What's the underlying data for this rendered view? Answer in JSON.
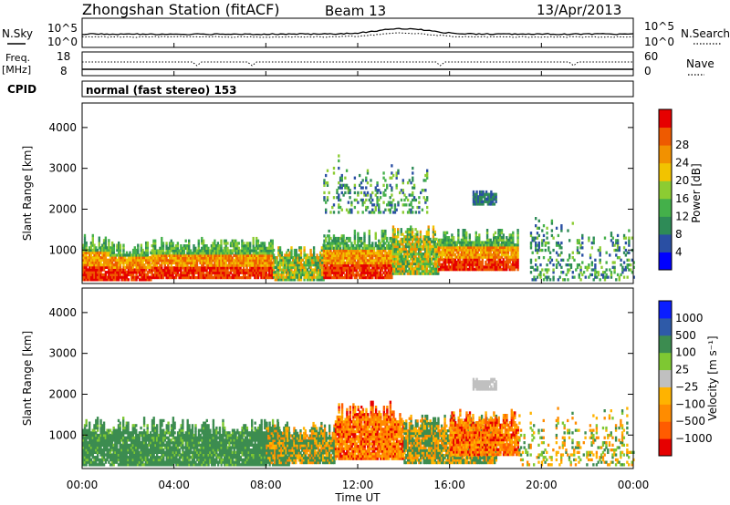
{
  "header": {
    "station": "Zhongshan Station (fitACF)",
    "beam": "Beam 13",
    "date": "13/Apr/2013",
    "mode": "normal (fast stereo) 153"
  },
  "left_labels": {
    "nsky": "N.Sky",
    "freq": "Freq.",
    "freq_unit": "[MHz]",
    "cpid": "CPID"
  },
  "right_labels": {
    "nsearch": "N.Search",
    "nave": "Nave"
  },
  "top_ticks": {
    "noise_left": [
      "10^5",
      "10^0"
    ],
    "noise_right": [
      "10^5",
      "10^0"
    ],
    "freq_left": [
      "18",
      "8"
    ],
    "nave_right": [
      "60",
      "0"
    ]
  },
  "colors": {
    "power": [
      "#0000ff",
      "#2a4fa3",
      "#2e8b57",
      "#44b04a",
      "#8ccc32",
      "#f2c300",
      "#f29100",
      "#ee5a00",
      "#e60000"
    ],
    "velocity": [
      "#e60000",
      "#ff5c00",
      "#ff8c00",
      "#ffb300",
      "#c0c0c0",
      "#7ec832",
      "#3c8c50",
      "#2e5aa8",
      "#0a1eff"
    ]
  },
  "chart_data": [
    {
      "type": "heatmap",
      "name": "power",
      "ylabel": "Slant Range [km]",
      "ylim": [
        180,
        4600
      ],
      "yticks": [
        1000,
        2000,
        3000,
        4000
      ],
      "xticks": [
        "00:00",
        "04:00",
        "08:00",
        "12:00",
        "16:00",
        "20:00",
        "00:00"
      ],
      "colorbar": {
        "label": "Power [dB]",
        "ticks": [
          4,
          8,
          12,
          16,
          20,
          24,
          28
        ]
      },
      "regions": [
        {
          "t": [
            0.0,
            1.2
          ],
          "r": [
            250,
            1400
          ],
          "level": "high"
        },
        {
          "t": [
            1.2,
            3.0
          ],
          "r": [
            250,
            1200
          ],
          "level": "high"
        },
        {
          "t": [
            3.0,
            8.3
          ],
          "r": [
            300,
            1300
          ],
          "level": "high"
        },
        {
          "t": [
            8.3,
            10.5
          ],
          "r": [
            250,
            1100
          ],
          "level": "mid"
        },
        {
          "t": [
            10.5,
            13.5
          ],
          "r": [
            300,
            1500
          ],
          "level": "high"
        },
        {
          "t": [
            13.5,
            15.5
          ],
          "r": [
            400,
            1600
          ],
          "level": "mid"
        },
        {
          "t": [
            15.5,
            19.0
          ],
          "r": [
            500,
            1500
          ],
          "level": "high"
        },
        {
          "t": [
            17.0,
            18.0
          ],
          "r": [
            2100,
            2450
          ],
          "level": "low"
        },
        {
          "t": [
            10.5,
            15.0
          ],
          "r": [
            1900,
            3300
          ],
          "level": "sparse"
        },
        {
          "t": [
            19.5,
            24.0
          ],
          "r": [
            250,
            1800
          ],
          "level": "sparse"
        }
      ]
    },
    {
      "type": "heatmap",
      "name": "velocity",
      "xlabel": "Time UT",
      "ylabel": "Slant Range [km]",
      "ylim": [
        180,
        4600
      ],
      "yticks": [
        1000,
        2000,
        3000,
        4000
      ],
      "xticks": [
        "00:00",
        "04:00",
        "08:00",
        "12:00",
        "16:00",
        "20:00",
        "00:00"
      ],
      "colorbar": {
        "label": "Velocity [m s⁻¹]",
        "ticks": [
          "1000",
          "500",
          "100",
          "25",
          "−25",
          "−100",
          "−500",
          "−1000"
        ]
      },
      "regions": [
        {
          "t": [
            0.0,
            9.0
          ],
          "r": [
            250,
            1400
          ],
          "level": "green"
        },
        {
          "t": [
            8.0,
            11.0
          ],
          "r": [
            300,
            1300
          ],
          "level": "mixed"
        },
        {
          "t": [
            11.0,
            14.0
          ],
          "r": [
            400,
            1800
          ],
          "level": "orange"
        },
        {
          "t": [
            14.0,
            18.0
          ],
          "r": [
            300,
            1500
          ],
          "level": "mixed"
        },
        {
          "t": [
            16.0,
            19.0
          ],
          "r": [
            500,
            1600
          ],
          "level": "orange"
        },
        {
          "t": [
            17.0,
            18.0
          ],
          "r": [
            2100,
            2400
          ],
          "level": "grey"
        },
        {
          "t": [
            19.0,
            24.0
          ],
          "r": [
            250,
            1700
          ],
          "level": "sparse"
        }
      ]
    }
  ]
}
